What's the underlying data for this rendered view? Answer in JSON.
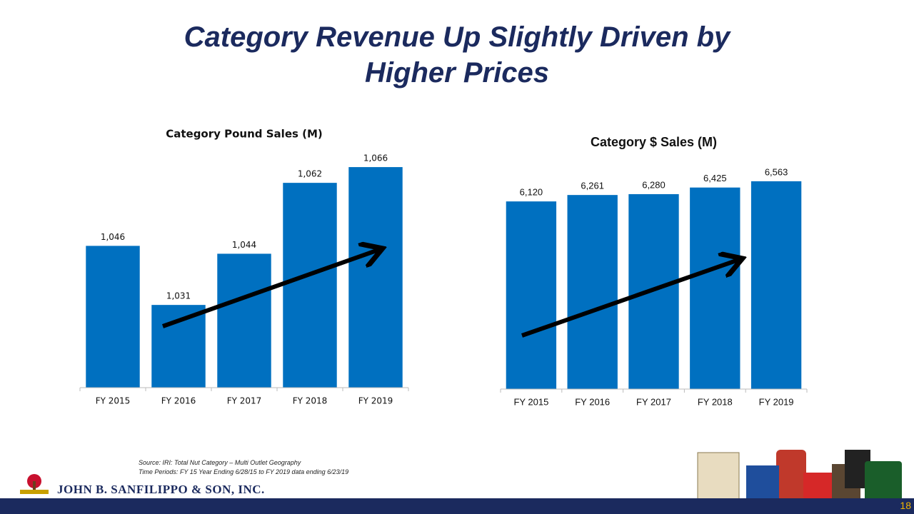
{
  "title": [
    "Category Revenue Up Slightly Driven by",
    "Higher Prices"
  ],
  "chart_data": [
    {
      "type": "bar",
      "title": "Category Pound Sales (M)",
      "categories": [
        "FY 2015",
        "FY 2016",
        "FY 2017",
        "FY 2018",
        "FY 2019"
      ],
      "values": [
        1046,
        1031,
        1044,
        1062,
        1066
      ],
      "value_labels": [
        "1,046",
        "1,031",
        "1,044",
        "1,062",
        "1,066"
      ],
      "color": "#0070c0",
      "ylim": [
        1010,
        1070
      ]
    },
    {
      "type": "bar",
      "title": "Category $ Sales (M)",
      "categories": [
        "FY 2015",
        "FY 2016",
        "FY 2017",
        "FY 2018",
        "FY 2019"
      ],
      "values": [
        6120,
        6261,
        6280,
        6425,
        6563
      ],
      "value_labels": [
        "6,120",
        "6,261",
        "6,280",
        "6,425",
        "6,563"
      ],
      "color": "#0070c0",
      "ylim": [
        2000,
        7000
      ]
    }
  ],
  "source": [
    "Source: IRI: Total Nut Category – Multi Outlet Geography",
    "Time Periods: FY 15 Year Ending 6/28/15 to FY 2019  data ending 6/23/19"
  ],
  "company": "JOHN B. SANFILIPPO & SON, INC.",
  "page_number": "18"
}
